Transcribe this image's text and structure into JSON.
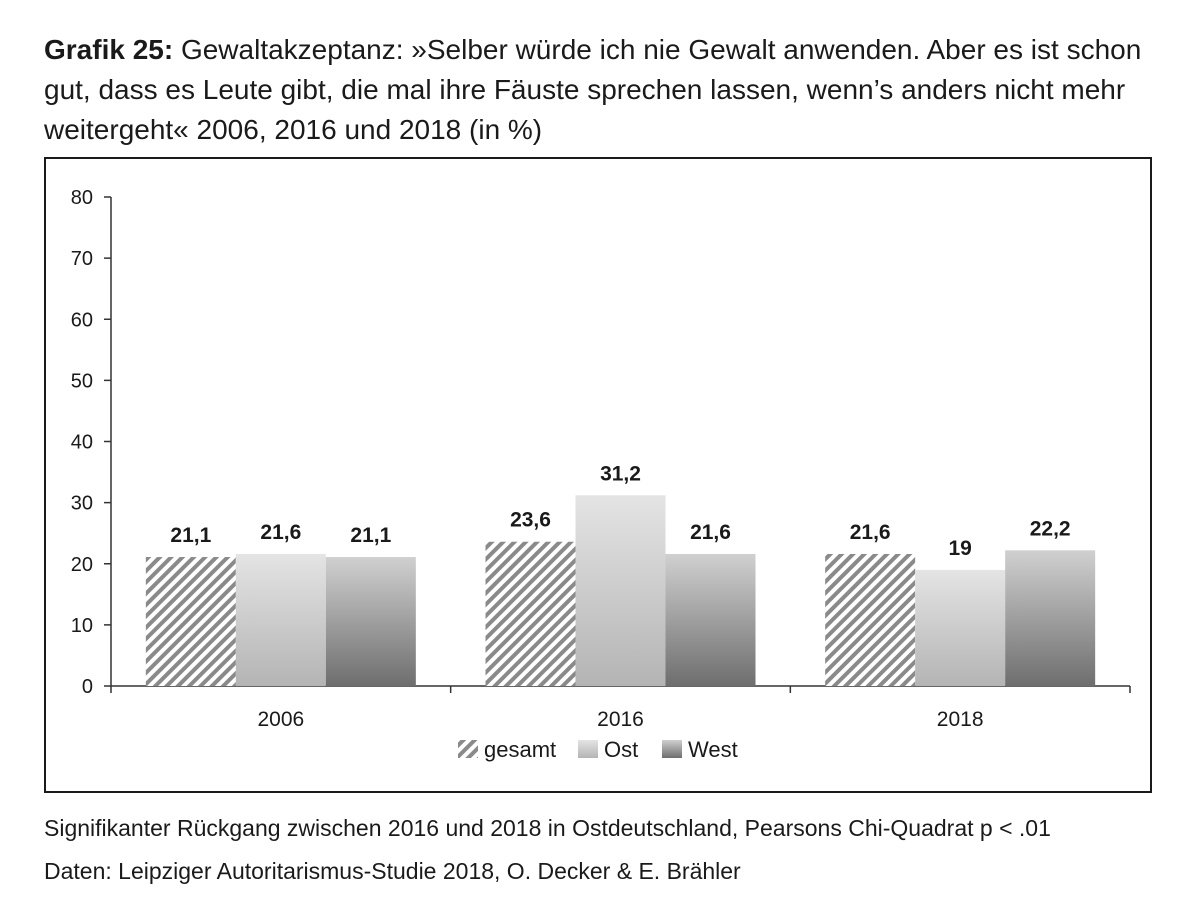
{
  "title": {
    "label": "Grafik 25:",
    "text": "Gewaltakzeptanz: »Selber würde ich nie Gewalt anwenden. Aber es ist schon gut, dass es Leute gibt, die mal ihre Fäuste sprechen lassen, wenn’s anders nicht mehr weitergeht« 2006, 2016 und 2018 (in %)"
  },
  "chart_data": {
    "type": "bar",
    "categories": [
      "2006",
      "2016",
      "2018"
    ],
    "series": [
      {
        "name": "gesamt",
        "values": [
          21.1,
          23.6,
          21.6
        ],
        "labels": [
          "21,1",
          "23,6",
          "21,6"
        ],
        "style": "hatched"
      },
      {
        "name": "Ost",
        "values": [
          21.6,
          31.2,
          19
        ],
        "labels": [
          "21,6",
          "31,2",
          "19"
        ],
        "style": "light-gradient"
      },
      {
        "name": "West",
        "values": [
          21.1,
          21.6,
          22.2
        ],
        "labels": [
          "21,1",
          "21,6",
          "22,2"
        ],
        "style": "dark-gradient"
      }
    ],
    "ylim": [
      0,
      80
    ],
    "yticks": [
      0,
      10,
      20,
      30,
      40,
      50,
      60,
      70,
      80
    ],
    "legend_position": "bottom",
    "grid": false
  },
  "notes": [
    "Signifikanter Rückgang zwischen 2016 und 2018 in Ostdeutschland, Pearsons Chi-Quadrat p < .01",
    "Daten: Leipziger Autoritarismus-Studie 2018, O. Decker & E. Brähler"
  ]
}
